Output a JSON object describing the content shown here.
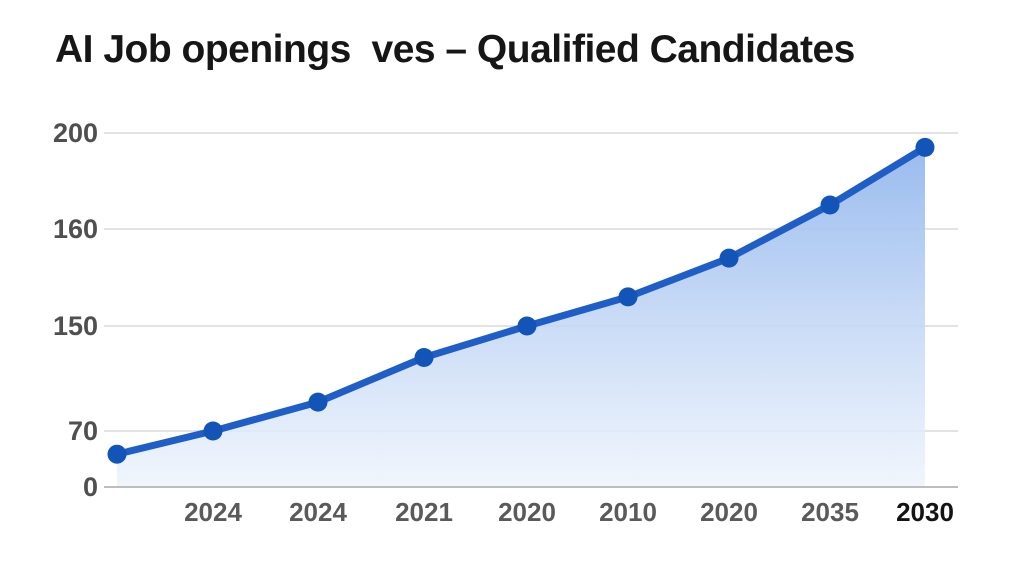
{
  "page": {
    "background_color": "#ffffff"
  },
  "chart_data": {
    "type": "area",
    "title": "AI Job openings  ves – Qualified Candidates",
    "xlabel": "",
    "ylabel": "",
    "grid": true,
    "legend": "none",
    "y_axis": {
      "tick_labels": [
        "200",
        "160",
        "150",
        "70",
        "0"
      ],
      "tick_values": [
        200,
        160,
        150,
        70,
        0
      ],
      "range": [
        0,
        200
      ]
    },
    "x_axis": {
      "tick_labels": [
        "2024",
        "2024",
        "2021",
        "2020",
        "2010",
        "2020",
        "2035",
        "2030"
      ]
    },
    "series_name": "AI Job openings vs Qualified Candidates",
    "points": [
      {
        "label": "",
        "value": 41,
        "emphasis": false
      },
      {
        "label": "2024",
        "value": 70,
        "emphasis": false
      },
      {
        "label": "2024",
        "value": 92,
        "emphasis": false
      },
      {
        "label": "2021",
        "value": 126,
        "emphasis": false
      },
      {
        "label": "2020",
        "value": 150,
        "emphasis": false
      },
      {
        "label": "2010",
        "value": 153,
        "emphasis": false
      },
      {
        "label": "2020",
        "value": 157,
        "emphasis": false
      },
      {
        "label": "2035",
        "value": 170,
        "emphasis": false
      },
      {
        "label": "2030",
        "value": 194,
        "emphasis": true
      }
    ],
    "colors": {
      "line": "#1e5ec6",
      "point": "#1254b8",
      "area_top": "#8fb4ec",
      "area_mid": "#c6d9f6",
      "area_bottom": "#eef4fc",
      "grid": "#e3e3e3",
      "axis_line": "#bdbdbd",
      "y_tick_text": "#4f4f4f",
      "x_tick_text": "#5a5a5a",
      "x_tick_text_emphasis": "#141414",
      "title_text": "#161616"
    }
  }
}
